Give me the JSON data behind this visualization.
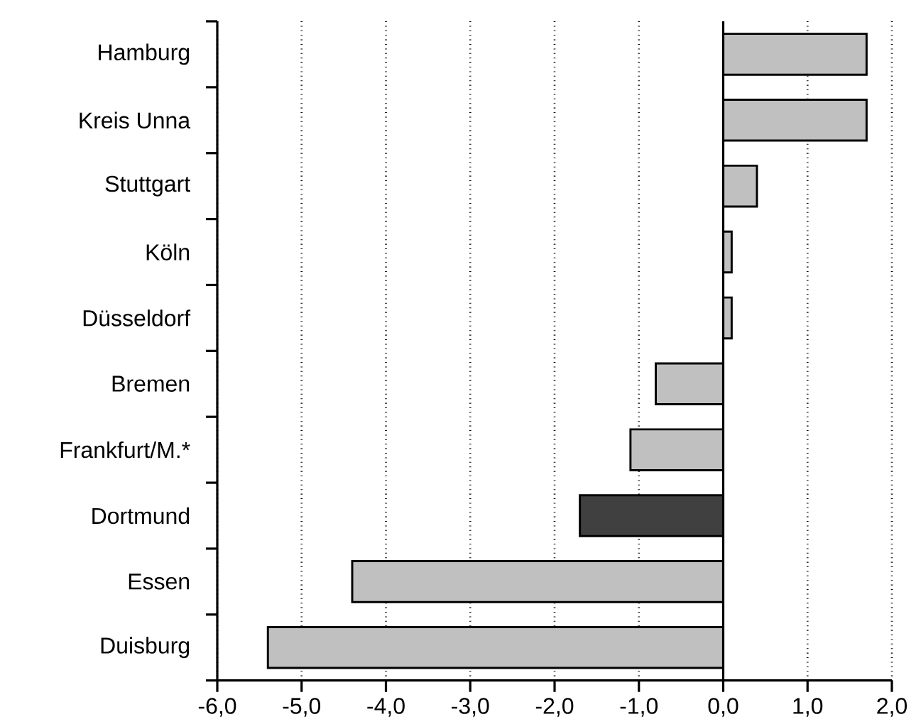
{
  "chart_data": {
    "type": "bar",
    "orientation": "horizontal",
    "categories": [
      "Hamburg",
      "Kreis Unna",
      "Stuttgart",
      "Köln",
      "Düsseldorf",
      "Bremen",
      "Frankfurt/M.*",
      "Dortmund",
      "Essen",
      "Duisburg"
    ],
    "values": [
      1.7,
      1.7,
      0.4,
      0.1,
      0.1,
      -0.8,
      -1.1,
      -1.7,
      -4.4,
      -5.4
    ],
    "colors": [
      "#c0c0c0",
      "#c0c0c0",
      "#c0c0c0",
      "#c0c0c0",
      "#c0c0c0",
      "#c0c0c0",
      "#c0c0c0",
      "#404040",
      "#c0c0c0",
      "#c0c0c0"
    ],
    "xlim": [
      -6,
      2
    ],
    "xticks": [
      {
        "value": -6,
        "label": "-6,0"
      },
      {
        "value": -5,
        "label": "-5,0"
      },
      {
        "value": -4,
        "label": "-4,0"
      },
      {
        "value": -3,
        "label": "-3,0"
      },
      {
        "value": -2,
        "label": "-2,0"
      },
      {
        "value": -1,
        "label": "-1,0"
      },
      {
        "value": 0,
        "label": "0,0"
      },
      {
        "value": 1,
        "label": "1,0"
      },
      {
        "value": 2,
        "label": "2,0"
      }
    ],
    "grid": "x"
  }
}
